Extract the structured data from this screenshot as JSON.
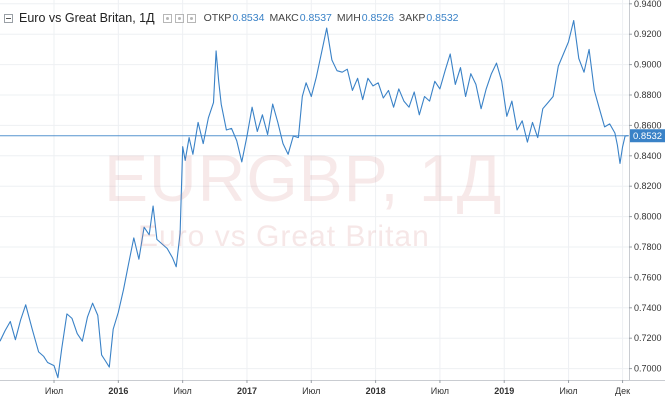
{
  "legend": {
    "symbol": "Euro vs Great Britan, 1Д",
    "open_label": "ОТКР",
    "open_value": "0.8534",
    "high_label": "МАКС",
    "high_value": "0.8537",
    "low_label": "МИН",
    "low_value": "0.8526",
    "close_label": "ЗАКР",
    "close_value": "0.8532"
  },
  "watermark": {
    "ticker": "EURGBP, 1Д",
    "name": "Euro vs Great Britan"
  },
  "colors": {
    "line": "#3a82c7",
    "grid": "#eef0f3",
    "axis_text": "#333333",
    "price_label_bg": "#3a82c7",
    "watermark": "#cd7878"
  },
  "chart_data": {
    "type": "line",
    "ylim": [
      0.6925,
      0.9425
    ],
    "y_ticks": [
      "0.9400",
      "0.9200",
      "0.9000",
      "0.8800",
      "0.8600",
      "0.8400",
      "0.8200",
      "0.8000",
      "0.7800",
      "0.7600",
      "0.7400",
      "0.7200",
      "0.7000"
    ],
    "x_ticks": [
      "Июл",
      "2016",
      "Июл",
      "2017",
      "Июл",
      "2018",
      "Июл",
      "2019",
      "Июл",
      "Дек"
    ],
    "x_tick_pos": [
      2015.5,
      2016.0,
      2016.5,
      2017.0,
      2017.5,
      2018.0,
      2018.5,
      2019.0,
      2019.5,
      2019.92
    ],
    "xlim": [
      2015.08,
      2019.97
    ],
    "last_price": "0.8532",
    "last_price_value": 0.8532,
    "series": [
      {
        "points": [
          [
            2015.08,
            0.718
          ],
          [
            2015.12,
            0.725
          ],
          [
            2015.16,
            0.731
          ],
          [
            2015.2,
            0.719
          ],
          [
            2015.24,
            0.732
          ],
          [
            2015.28,
            0.742
          ],
          [
            2015.33,
            0.726
          ],
          [
            2015.38,
            0.711
          ],
          [
            2015.42,
            0.708
          ],
          [
            2015.45,
            0.704
          ],
          [
            2015.5,
            0.702
          ],
          [
            2015.53,
            0.694
          ],
          [
            2015.56,
            0.713
          ],
          [
            2015.6,
            0.736
          ],
          [
            2015.64,
            0.733
          ],
          [
            2015.68,
            0.723
          ],
          [
            2015.72,
            0.718
          ],
          [
            2015.76,
            0.734
          ],
          [
            2015.8,
            0.743
          ],
          [
            2015.84,
            0.735
          ],
          [
            2015.87,
            0.709
          ],
          [
            2015.9,
            0.705
          ],
          [
            2015.93,
            0.701
          ],
          [
            2015.96,
            0.726
          ],
          [
            2016.0,
            0.737
          ],
          [
            2016.04,
            0.752
          ],
          [
            2016.08,
            0.769
          ],
          [
            2016.12,
            0.786
          ],
          [
            2016.16,
            0.772
          ],
          [
            2016.2,
            0.793
          ],
          [
            2016.24,
            0.788
          ],
          [
            2016.27,
            0.807
          ],
          [
            2016.3,
            0.785
          ],
          [
            2016.34,
            0.782
          ],
          [
            2016.38,
            0.779
          ],
          [
            2016.42,
            0.773
          ],
          [
            2016.45,
            0.767
          ],
          [
            2016.48,
            0.789
          ],
          [
            2016.5,
            0.846
          ],
          [
            2016.52,
            0.837
          ],
          [
            2016.55,
            0.852
          ],
          [
            2016.58,
            0.841
          ],
          [
            2016.62,
            0.862
          ],
          [
            2016.66,
            0.848
          ],
          [
            2016.7,
            0.865
          ],
          [
            2016.74,
            0.875
          ],
          [
            2016.76,
            0.909
          ],
          [
            2016.78,
            0.889
          ],
          [
            2016.8,
            0.874
          ],
          [
            2016.84,
            0.857
          ],
          [
            2016.88,
            0.858
          ],
          [
            2016.92,
            0.85
          ],
          [
            2016.96,
            0.836
          ],
          [
            2017.0,
            0.853
          ],
          [
            2017.04,
            0.872
          ],
          [
            2017.08,
            0.856
          ],
          [
            2017.12,
            0.867
          ],
          [
            2017.16,
            0.854
          ],
          [
            2017.2,
            0.874
          ],
          [
            2017.24,
            0.862
          ],
          [
            2017.28,
            0.848
          ],
          [
            2017.32,
            0.841
          ],
          [
            2017.36,
            0.853
          ],
          [
            2017.4,
            0.852
          ],
          [
            2017.43,
            0.879
          ],
          [
            2017.46,
            0.888
          ],
          [
            2017.5,
            0.879
          ],
          [
            2017.54,
            0.892
          ],
          [
            2017.58,
            0.908
          ],
          [
            2017.62,
            0.924
          ],
          [
            2017.66,
            0.903
          ],
          [
            2017.7,
            0.896
          ],
          [
            2017.74,
            0.895
          ],
          [
            2017.78,
            0.897
          ],
          [
            2017.82,
            0.883
          ],
          [
            2017.86,
            0.891
          ],
          [
            2017.9,
            0.877
          ],
          [
            2017.94,
            0.891
          ],
          [
            2017.98,
            0.886
          ],
          [
            2018.02,
            0.888
          ],
          [
            2018.06,
            0.878
          ],
          [
            2018.1,
            0.883
          ],
          [
            2018.14,
            0.872
          ],
          [
            2018.18,
            0.884
          ],
          [
            2018.22,
            0.876
          ],
          [
            2018.26,
            0.872
          ],
          [
            2018.3,
            0.882
          ],
          [
            2018.34,
            0.867
          ],
          [
            2018.38,
            0.879
          ],
          [
            2018.42,
            0.876
          ],
          [
            2018.46,
            0.889
          ],
          [
            2018.5,
            0.884
          ],
          [
            2018.54,
            0.896
          ],
          [
            2018.58,
            0.907
          ],
          [
            2018.62,
            0.887
          ],
          [
            2018.66,
            0.898
          ],
          [
            2018.7,
            0.879
          ],
          [
            2018.74,
            0.894
          ],
          [
            2018.78,
            0.887
          ],
          [
            2018.82,
            0.871
          ],
          [
            2018.86,
            0.884
          ],
          [
            2018.9,
            0.894
          ],
          [
            2018.94,
            0.901
          ],
          [
            2018.98,
            0.889
          ],
          [
            2019.02,
            0.866
          ],
          [
            2019.06,
            0.876
          ],
          [
            2019.1,
            0.857
          ],
          [
            2019.14,
            0.863
          ],
          [
            2019.18,
            0.849
          ],
          [
            2019.22,
            0.862
          ],
          [
            2019.26,
            0.852
          ],
          [
            2019.3,
            0.871
          ],
          [
            2019.34,
            0.875
          ],
          [
            2019.38,
            0.879
          ],
          [
            2019.42,
            0.899
          ],
          [
            2019.46,
            0.907
          ],
          [
            2019.5,
            0.915
          ],
          [
            2019.54,
            0.929
          ],
          [
            2019.58,
            0.904
          ],
          [
            2019.62,
            0.895
          ],
          [
            2019.66,
            0.91
          ],
          [
            2019.7,
            0.883
          ],
          [
            2019.74,
            0.871
          ],
          [
            2019.78,
            0.859
          ],
          [
            2019.82,
            0.861
          ],
          [
            2019.86,
            0.855
          ],
          [
            2019.88,
            0.847
          ],
          [
            2019.9,
            0.835
          ],
          [
            2019.92,
            0.846
          ],
          [
            2019.94,
            0.853
          ],
          [
            2019.96,
            0.8532
          ]
        ]
      }
    ]
  }
}
